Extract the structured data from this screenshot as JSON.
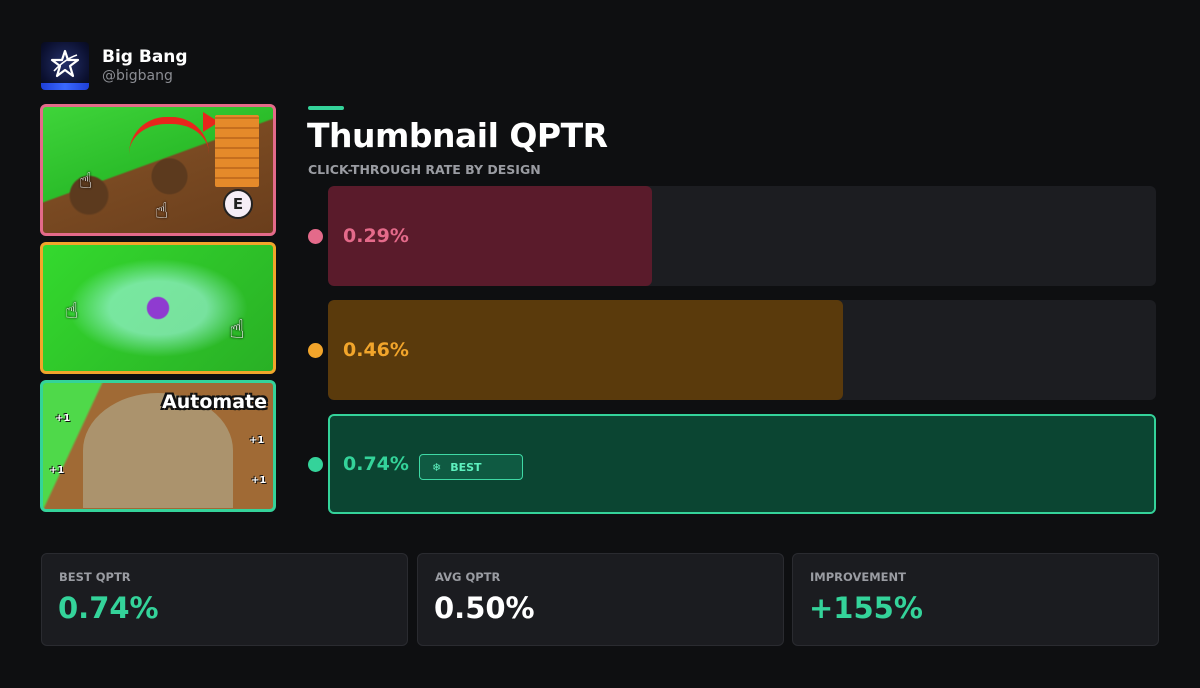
{
  "profile": {
    "name": "Big Bang",
    "handle": "@bigbang"
  },
  "thumbnails": [
    {
      "border_color": "#e46a8a",
      "overlay_text": "E"
    },
    {
      "border_color": "#f2a52b"
    },
    {
      "border_color": "#34d39a",
      "overlay_text": "Automate",
      "plus_labels": [
        "+1",
        "+1",
        "+1",
        "+1"
      ]
    }
  ],
  "header": {
    "title": "Thumbnail QPTR",
    "subtitle": "CLICK-THROUGH RATE BY DESIGN"
  },
  "chart_data": {
    "type": "bar",
    "orientation": "horizontal",
    "title": "Thumbnail QPTR",
    "subtitle": "CLICK-THROUGH RATE BY DESIGN",
    "max_value": 0.74,
    "bars": [
      {
        "value": 0.29,
        "label": "0.29%",
        "color": "#e46a8a",
        "fill_color": "#5a1b2b"
      },
      {
        "value": 0.46,
        "label": "0.46%",
        "color": "#f2a52b",
        "fill_color": "#5a3a0c"
      },
      {
        "value": 0.74,
        "label": "0.74%",
        "color": "#34d39a",
        "fill_color": "#0b4532",
        "badge": "BEST",
        "badge_icon": "snowflake-icon"
      }
    ]
  },
  "stats": [
    {
      "label": "BEST QPTR",
      "value": "0.74%",
      "color": "#34d39a"
    },
    {
      "label": "AVG QPTR",
      "value": "0.50%",
      "color": "#ffffff"
    },
    {
      "label": "IMPROVEMENT",
      "value": "+155%",
      "color": "#34d39a"
    }
  ]
}
